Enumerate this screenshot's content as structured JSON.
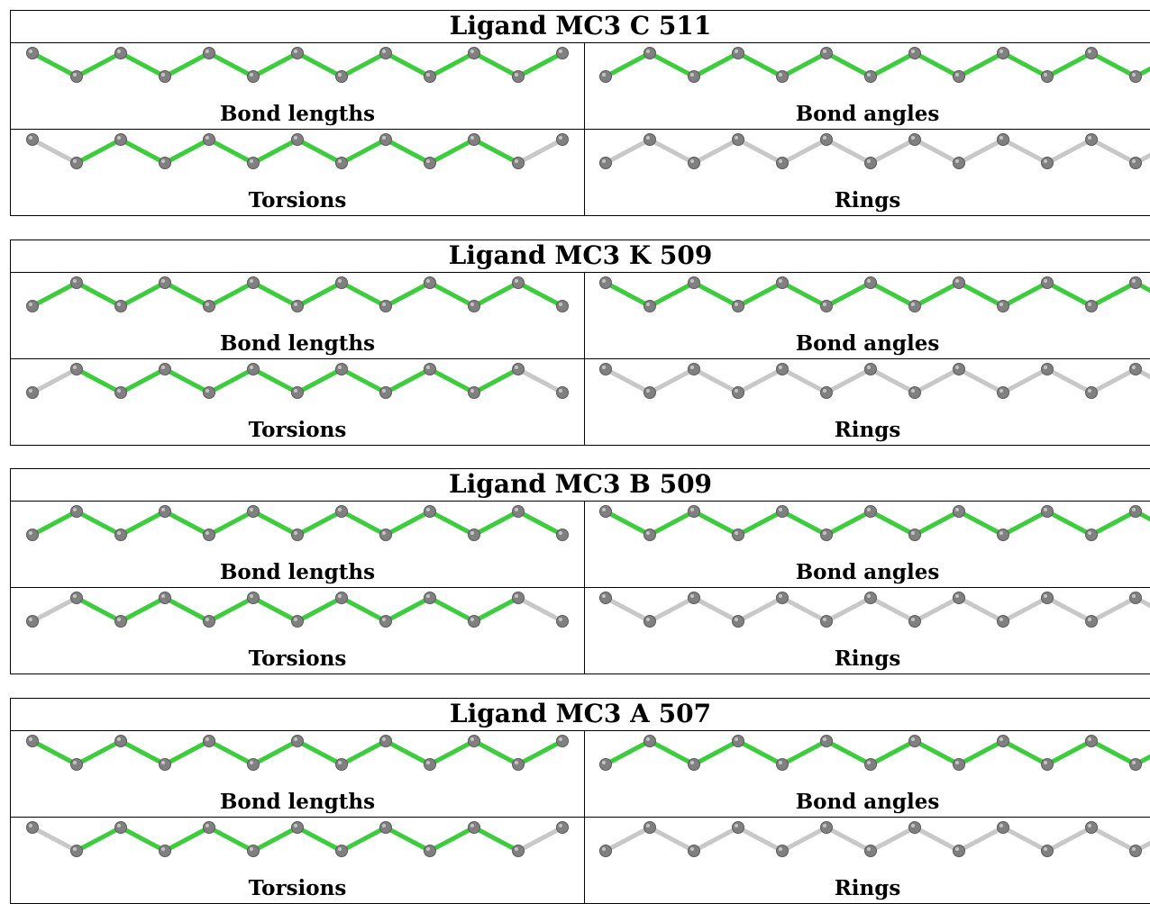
{
  "colors": {
    "ok": "#3dcc3d",
    "neutral": "#c8c8c8",
    "atom": "#808080"
  },
  "ligands": [
    {
      "title": "Ligand MC3 C 511",
      "phase": "down",
      "panels": [
        {
          "label": "Bond lengths",
          "bonds": [
            "ok",
            "ok",
            "ok",
            "ok",
            "ok",
            "ok",
            "ok",
            "ok",
            "ok",
            "ok",
            "ok",
            "ok"
          ]
        },
        {
          "label": "Bond angles",
          "bonds": [
            "ok",
            "ok",
            "ok",
            "ok",
            "ok",
            "ok",
            "ok",
            "ok",
            "ok",
            "ok",
            "ok",
            "ok",
            "ok"
          ]
        },
        {
          "label": "Torsions",
          "bonds": [
            "neutral",
            "ok",
            "ok",
            "ok",
            "ok",
            "ok",
            "ok",
            "ok",
            "ok",
            "ok",
            "ok",
            "neutral"
          ]
        },
        {
          "label": "Rings",
          "bonds": [
            "neutral",
            "neutral",
            "neutral",
            "neutral",
            "neutral",
            "neutral",
            "neutral",
            "neutral",
            "neutral",
            "neutral",
            "neutral",
            "neutral",
            "neutral"
          ]
        }
      ]
    },
    {
      "title": "Ligand MC3 K 509",
      "phase": "up",
      "panels": [
        {
          "label": "Bond lengths",
          "bonds": [
            "ok",
            "ok",
            "ok",
            "ok",
            "ok",
            "ok",
            "ok",
            "ok",
            "ok",
            "ok",
            "ok",
            "ok"
          ]
        },
        {
          "label": "Bond angles",
          "bonds": [
            "ok",
            "ok",
            "ok",
            "ok",
            "ok",
            "ok",
            "ok",
            "ok",
            "ok",
            "ok",
            "ok",
            "ok",
            "ok"
          ]
        },
        {
          "label": "Torsions",
          "bonds": [
            "neutral",
            "ok",
            "ok",
            "ok",
            "ok",
            "ok",
            "ok",
            "ok",
            "ok",
            "ok",
            "ok",
            "neutral"
          ]
        },
        {
          "label": "Rings",
          "bonds": [
            "neutral",
            "neutral",
            "neutral",
            "neutral",
            "neutral",
            "neutral",
            "neutral",
            "neutral",
            "neutral",
            "neutral",
            "neutral",
            "neutral",
            "neutral"
          ]
        }
      ]
    },
    {
      "title": "Ligand MC3 B 509",
      "phase": "up",
      "panels": [
        {
          "label": "Bond lengths",
          "bonds": [
            "ok",
            "ok",
            "ok",
            "ok",
            "ok",
            "ok",
            "ok",
            "ok",
            "ok",
            "ok",
            "ok",
            "ok"
          ]
        },
        {
          "label": "Bond angles",
          "bonds": [
            "ok",
            "ok",
            "ok",
            "ok",
            "ok",
            "ok",
            "ok",
            "ok",
            "ok",
            "ok",
            "ok",
            "ok",
            "ok"
          ]
        },
        {
          "label": "Torsions",
          "bonds": [
            "neutral",
            "ok",
            "ok",
            "ok",
            "ok",
            "ok",
            "ok",
            "ok",
            "ok",
            "ok",
            "ok",
            "neutral"
          ]
        },
        {
          "label": "Rings",
          "bonds": [
            "neutral",
            "neutral",
            "neutral",
            "neutral",
            "neutral",
            "neutral",
            "neutral",
            "neutral",
            "neutral",
            "neutral",
            "neutral",
            "neutral",
            "neutral"
          ]
        }
      ]
    },
    {
      "title": "Ligand MC3 A 507",
      "phase": "down",
      "panels": [
        {
          "label": "Bond lengths",
          "bonds": [
            "ok",
            "ok",
            "ok",
            "ok",
            "ok",
            "ok",
            "ok",
            "ok",
            "ok",
            "ok",
            "ok",
            "ok"
          ]
        },
        {
          "label": "Bond angles",
          "bonds": [
            "ok",
            "ok",
            "ok",
            "ok",
            "ok",
            "ok",
            "ok",
            "ok",
            "ok",
            "ok",
            "ok",
            "ok",
            "ok"
          ]
        },
        {
          "label": "Torsions",
          "bonds": [
            "neutral",
            "ok",
            "ok",
            "ok",
            "ok",
            "ok",
            "ok",
            "ok",
            "ok",
            "ok",
            "ok",
            "neutral"
          ]
        },
        {
          "label": "Rings",
          "bonds": [
            "neutral",
            "neutral",
            "neutral",
            "neutral",
            "neutral",
            "neutral",
            "neutral",
            "neutral",
            "neutral",
            "neutral",
            "neutral",
            "neutral",
            "neutral"
          ]
        }
      ]
    }
  ]
}
